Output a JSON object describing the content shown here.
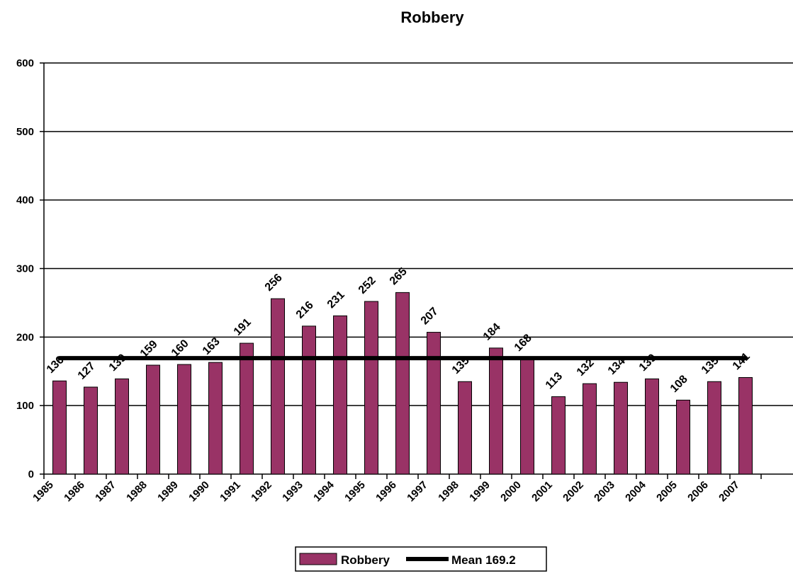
{
  "chart_data": {
    "type": "bar",
    "title": "Robbery",
    "xlabel": "",
    "ylabel": "",
    "categories": [
      "1985",
      "1986",
      "1987",
      "1988",
      "1989",
      "1990",
      "1991",
      "1992",
      "1993",
      "1994",
      "1995",
      "1996",
      "1997",
      "1998",
      "1999",
      "2000",
      "2001",
      "2002",
      "2003",
      "2004",
      "2005",
      "2006",
      "2007"
    ],
    "series": [
      {
        "name": "Robbery",
        "values": [
          136,
          127,
          139,
          159,
          160,
          163,
          191,
          256,
          216,
          231,
          252,
          265,
          207,
          135,
          184,
          168,
          113,
          132,
          134,
          139,
          108,
          135,
          141
        ],
        "color": "#993366"
      }
    ],
    "mean_line": {
      "name": "Mean 169.2",
      "value": 169.2,
      "color": "#000000"
    },
    "ylim": [
      0,
      600
    ],
    "yticks": [
      0,
      100,
      200,
      300,
      400,
      500,
      600
    ],
    "grid": true,
    "legend_position": "bottom"
  }
}
